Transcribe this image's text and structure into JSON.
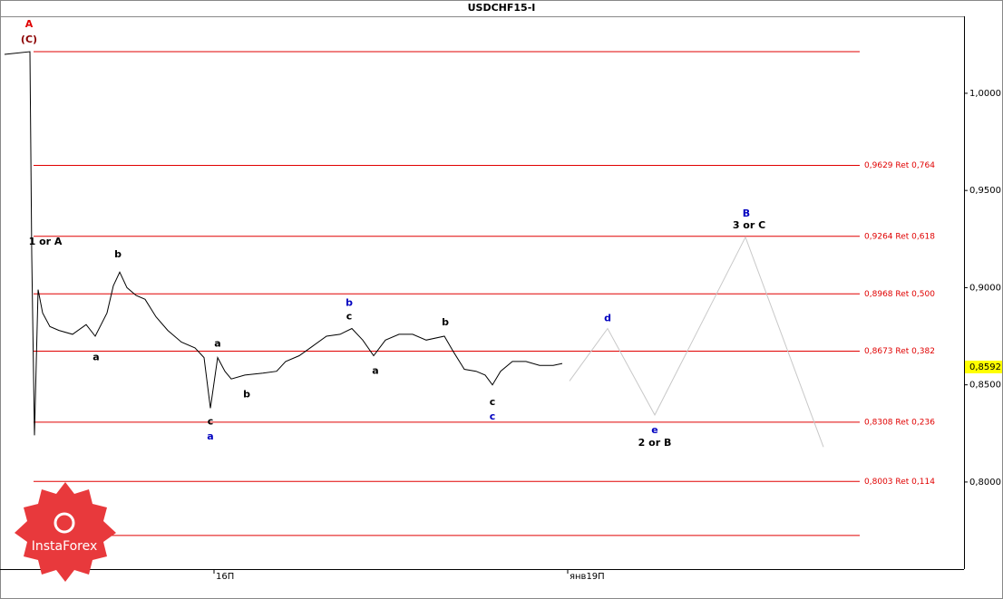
{
  "chart_data": {
    "type": "line",
    "title": "USDCHF15-I",
    "xlim": [
      0,
      265.75
    ],
    "ylim": [
      0.7552,
      1.0396
    ],
    "xticks": [
      {
        "value": 59,
        "label": "16П"
      },
      {
        "value": 156.5,
        "label": "янв19П"
      }
    ],
    "yticks": [
      {
        "value": 1.0,
        "label": "1,0000"
      },
      {
        "value": 0.95,
        "label": "0,9500"
      },
      {
        "value": 0.9,
        "label": "0,9000"
      },
      {
        "value": 0.85,
        "label": "0,8500"
      },
      {
        "value": 0.8,
        "label": "0,8000"
      }
    ],
    "current_price": {
      "value": 0.8592,
      "label": "0,8592"
    },
    "series": [
      {
        "name": null,
        "color": "#000000",
        "x": [
          1.25,
          8.25,
          8.75,
          9.5,
          10.5,
          11.75,
          13.75,
          16.25,
          20,
          23.75,
          26.25,
          29.5,
          31.25,
          33,
          35,
          37.5,
          40,
          43,
          46.25,
          50,
          53.75,
          56.25,
          58,
          60,
          62,
          63.75,
          67.5,
          72.5,
          76.25,
          78.75,
          82.5,
          86.25,
          90,
          93.75,
          97,
          100,
          103,
          106.25,
          110,
          113.75,
          117.5,
          122.5,
          125,
          128,
          131.25,
          133.75,
          135.75,
          138,
          141.25,
          145,
          148.75,
          152.5,
          155
        ],
        "values": [
          1.02,
          1.0214,
          0.917,
          0.824,
          0.899,
          0.887,
          0.88,
          0.878,
          0.876,
          0.881,
          0.875,
          0.887,
          0.901,
          0.908,
          0.9,
          0.896,
          0.894,
          0.885,
          0.878,
          0.872,
          0.869,
          0.864,
          0.838,
          0.864,
          0.857,
          0.853,
          0.855,
          0.856,
          0.857,
          0.862,
          0.865,
          0.87,
          0.875,
          0.876,
          0.879,
          0.873,
          0.865,
          0.873,
          0.876,
          0.876,
          0.873,
          0.875,
          0.867,
          0.858,
          0.857,
          0.855,
          0.85,
          0.857,
          0.862,
          0.862,
          0.86,
          0.86,
          0.861
        ]
      },
      {
        "name": null,
        "color": "#c8c8c8",
        "x": [
          157,
          167.5,
          180.5,
          205.5,
          227
        ],
        "values": [
          0.852,
          0.879,
          0.8345,
          0.926,
          0.818
        ]
      }
    ],
    "levels": [
      {
        "value": 1.0214,
        "label": null
      },
      {
        "value": 0.9629,
        "label": "0,9629 Ret 0,764"
      },
      {
        "value": 0.9264,
        "label": "0,9264 Ret 0,618"
      },
      {
        "value": 0.8968,
        "label": "0,8968 Ret 0,500"
      },
      {
        "value": 0.8673,
        "label": "0,8673 Ret 0,382"
      },
      {
        "value": 0.8308,
        "label": "0,8308 Ret 0,236"
      },
      {
        "value": 0.8003,
        "label": "0,8003 Ret 0,114"
      },
      {
        "value": 0.7725,
        "label": null
      }
    ],
    "annotations": [
      {
        "text": "A",
        "color": "#e00000",
        "x": 8,
        "y": 1.0354
      },
      {
        "text": "(C)",
        "color": "#8b0000",
        "x": 8,
        "y": 1.0275
      },
      {
        "text": "1 or A",
        "color": "#000000",
        "x": 12.5,
        "y": 0.9235
      },
      {
        "text": "b",
        "color": "#000000",
        "x": 32.5,
        "y": 0.917
      },
      {
        "text": "a",
        "color": "#000000",
        "x": 26.5,
        "y": 0.864
      },
      {
        "text": "a",
        "color": "#000000",
        "x": 60,
        "y": 0.871
      },
      {
        "text": "c",
        "color": "#000000",
        "x": 58,
        "y": 0.831
      },
      {
        "text": "a",
        "color": "#0000c0",
        "x": 58,
        "y": 0.8233
      },
      {
        "text": "b",
        "color": "#000000",
        "x": 68,
        "y": 0.845
      },
      {
        "text": "b",
        "color": "#0000c0",
        "x": 96.25,
        "y": 0.892
      },
      {
        "text": "c",
        "color": "#000000",
        "x": 96.25,
        "y": 0.885
      },
      {
        "text": "a",
        "color": "#000000",
        "x": 103.5,
        "y": 0.857
      },
      {
        "text": "b",
        "color": "#000000",
        "x": 122.75,
        "y": 0.882
      },
      {
        "text": "c",
        "color": "#000000",
        "x": 135.75,
        "y": 0.841
      },
      {
        "text": "c",
        "color": "#0000c0",
        "x": 135.75,
        "y": 0.8336
      },
      {
        "text": "d",
        "color": "#0000c0",
        "x": 167.5,
        "y": 0.884
      },
      {
        "text": "e",
        "color": "#0000c0",
        "x": 180.5,
        "y": 0.8266
      },
      {
        "text": "2 or B",
        "color": "#000000",
        "x": 180.5,
        "y": 0.82
      },
      {
        "text": "B",
        "color": "#0000c0",
        "x": 205.75,
        "y": 0.938
      },
      {
        "text": "3 or C",
        "color": "#000000",
        "x": 206.5,
        "y": 0.932
      }
    ]
  },
  "logo": "InstaForex"
}
